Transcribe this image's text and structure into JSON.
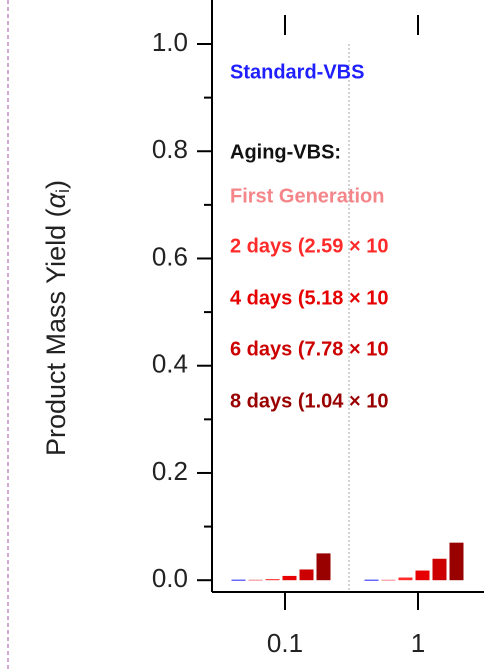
{
  "chart_data": {
    "type": "bar",
    "ylabel_parts": [
      "Product Mass Yield (",
      "α",
      "i",
      ")"
    ],
    "legend_heading": "Aging-VBS:",
    "categories": [
      "0.1",
      "1"
    ],
    "series": [
      {
        "name": "Standard-VBS",
        "color": "#1f1fff",
        "values": [
          0.001,
          0.001
        ]
      },
      {
        "name": "First Generation",
        "color": "#f4868a",
        "values": [
          0.001,
          0.001
        ]
      },
      {
        "name": "2 days (2.59 × 10",
        "color": "#ff2a2a",
        "values": [
          0.002,
          0.005
        ]
      },
      {
        "name": "4 days (5.18 × 10",
        "color": "#e60000",
        "values": [
          0.008,
          0.018
        ]
      },
      {
        "name": "6 days (7.78 × 10",
        "color": "#cc0000",
        "values": [
          0.02,
          0.04
        ]
      },
      {
        "name": "8 days (1.04 × 10",
        "color": "#990000",
        "values": [
          0.05,
          0.07
        ]
      }
    ],
    "ylim": [
      -0.022,
      1.0
    ],
    "yticks": [
      {
        "value": 0,
        "label": "0.0"
      },
      0.2,
      0.4,
      0.6,
      0.8,
      {
        "value": 1,
        "label": "1.0"
      }
    ],
    "yticks_minor": [
      0.1,
      0.3,
      0.5,
      0.7,
      0.9
    ]
  }
}
